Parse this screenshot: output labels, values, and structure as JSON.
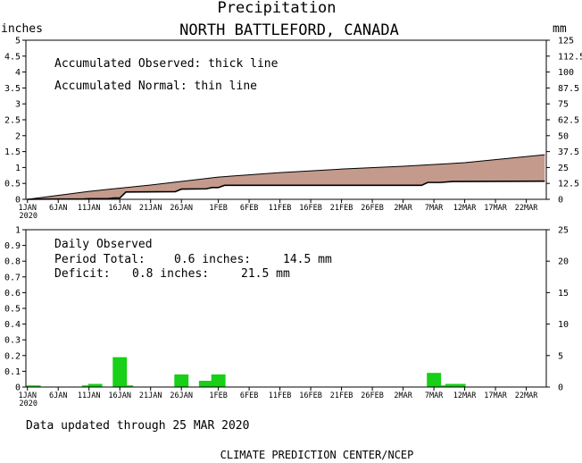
{
  "title": "Precipitation",
  "subtitle": "NORTH BATTLEFORD, CANADA",
  "top_panel": {
    "left_unit": "inches",
    "right_unit": "mm",
    "note_1": "Accumulated Observed: thick line",
    "note_2": "Accumulated Normal: thin line"
  },
  "bottom_panel": {
    "heading": "Daily Observed",
    "period_label": "Period Total:",
    "period_inches": "0.6 inches:",
    "period_mm": "14.5 mm",
    "deficit_label": "Deficit:",
    "deficit_inches": "0.8 inches:",
    "deficit_mm": "21.5 mm"
  },
  "footer": "Data updated through 25 MAR 2020",
  "credit": "CLIMATE PREDICTION CENTER/NCEP",
  "colors": {
    "fill": "#c49a8c",
    "bar": "#17d017",
    "axis": "#000000"
  },
  "chart_data": [
    {
      "type": "area",
      "x_start": "2020-01-01",
      "x_end": "2020-03-25",
      "x_ticks": [
        "1JAN",
        "6JAN",
        "11JAN",
        "16JAN",
        "21JAN",
        "26JAN",
        "1FEB",
        "6FEB",
        "11FEB",
        "16FEB",
        "21FEB",
        "26FEB",
        "2MAR",
        "7MAR",
        "12MAR",
        "17MAR",
        "22MAR"
      ],
      "x_year_label": "2020",
      "ylabel_left": "inches",
      "ylabel_right": "mm",
      "ylim": [
        0,
        5
      ],
      "y_ticks": [
        "0",
        "0.5",
        "1",
        "1.5",
        "2",
        "2.5",
        "3",
        "3.5",
        "4",
        "4.5",
        "5"
      ],
      "y_ticks_right": [
        "0",
        "12.5",
        "25",
        "37.5",
        "50",
        "62.5",
        "75",
        "87.5",
        "100",
        "112.5",
        "125"
      ],
      "series": [
        {
          "name": "Accumulated Normal",
          "x": [
            "2020-01-01",
            "2020-01-11",
            "2020-01-21",
            "2020-02-01",
            "2020-02-11",
            "2020-02-21",
            "2020-03-02",
            "2020-03-12",
            "2020-03-25"
          ],
          "values": [
            0,
            0.25,
            0.45,
            0.7,
            0.84,
            0.95,
            1.04,
            1.15,
            1.4
          ]
        },
        {
          "name": "Accumulated Observed",
          "x": [
            "2020-01-01",
            "2020-01-05",
            "2020-01-10",
            "2020-01-11",
            "2020-01-14",
            "2020-01-15",
            "2020-01-16",
            "2020-01-17",
            "2020-01-25",
            "2020-01-26",
            "2020-01-30",
            "2020-01-31",
            "2020-02-01",
            "2020-02-02",
            "2020-03-05",
            "2020-03-06",
            "2020-03-08",
            "2020-03-10",
            "2020-03-25"
          ],
          "values": [
            0,
            0.01,
            0.01,
            0.02,
            0.02,
            0.04,
            0.04,
            0.23,
            0.24,
            0.32,
            0.33,
            0.37,
            0.37,
            0.44,
            0.44,
            0.53,
            0.53,
            0.56,
            0.57
          ]
        }
      ]
    },
    {
      "type": "bar",
      "x_start": "2020-01-01",
      "x_end": "2020-03-25",
      "x_ticks": [
        "1JAN",
        "6JAN",
        "11JAN",
        "16JAN",
        "21JAN",
        "26JAN",
        "1FEB",
        "6FEB",
        "11FEB",
        "16FEB",
        "21FEB",
        "26FEB",
        "2MAR",
        "7MAR",
        "12MAR",
        "17MAR",
        "22MAR"
      ],
      "x_year_label": "2020",
      "ylim": [
        0,
        1
      ],
      "y_ticks": [
        "0",
        "0.1",
        "0.2",
        "0.3",
        "0.4",
        "0.5",
        "0.6",
        "0.7",
        "0.8",
        "0.9",
        "1"
      ],
      "y_ticks_right": [
        "0",
        "5",
        "10",
        "15",
        "20",
        "25"
      ],
      "series": [
        {
          "name": "Daily Observed",
          "x": [
            "2020-01-02",
            "2020-01-11",
            "2020-01-12",
            "2020-01-16",
            "2020-01-17",
            "2020-01-26",
            "2020-01-30",
            "2020-02-01",
            "2020-03-07",
            "2020-03-08",
            "2020-03-10",
            "2020-03-11"
          ],
          "values": [
            0.01,
            0.01,
            0.02,
            0.19,
            0.01,
            0.08,
            0.04,
            0.08,
            0.09,
            0.01,
            0.02,
            0.02
          ]
        }
      ]
    }
  ]
}
